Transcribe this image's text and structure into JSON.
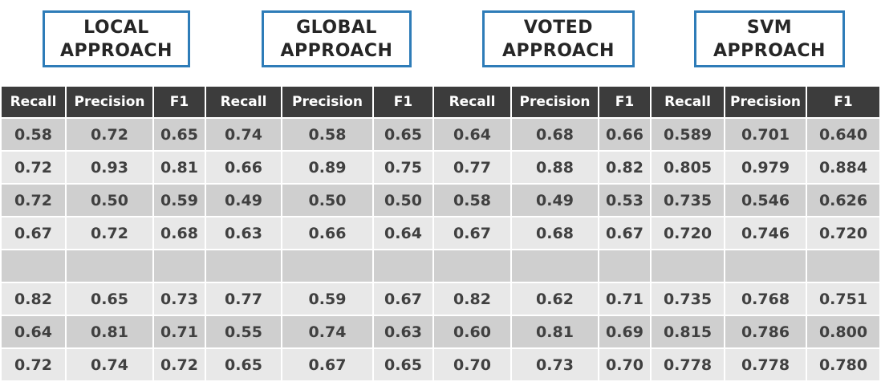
{
  "approaches": [
    {
      "line1": "LOCAL",
      "line2": "APPROACH"
    },
    {
      "line1": "GLOBAL",
      "line2": "APPROACH"
    },
    {
      "line1": "VOTED",
      "line2": "APPROACH"
    },
    {
      "line1": "SVM",
      "line2": "APPROACH"
    }
  ],
  "table": {
    "headers": [
      "Recall",
      "Precision",
      "F1",
      "Recall",
      "Precision",
      "F1",
      "Recall",
      "Precision",
      "F1",
      "Recall",
      "Precision",
      "F1"
    ],
    "rows": [
      [
        "0.58",
        "0.72",
        "0.65",
        "0.74",
        "0.58",
        "0.65",
        "0.64",
        "0.68",
        "0.66",
        "0.589",
        "0.701",
        "0.640"
      ],
      [
        "0.72",
        "0.93",
        "0.81",
        "0.66",
        "0.89",
        "0.75",
        "0.77",
        "0.88",
        "0.82",
        "0.805",
        "0.979",
        "0.884"
      ],
      [
        "0.72",
        "0.50",
        "0.59",
        "0.49",
        "0.50",
        "0.50",
        "0.58",
        "0.49",
        "0.53",
        "0.735",
        "0.546",
        "0.626"
      ],
      [
        "0.67",
        "0.72",
        "0.68",
        "0.63",
        "0.66",
        "0.64",
        "0.67",
        "0.68",
        "0.67",
        "0.720",
        "0.746",
        "0.720"
      ],
      [
        "",
        "",
        "",
        "",
        "",
        "",
        "",
        "",
        "",
        "",
        "",
        ""
      ],
      [
        "0.82",
        "0.65",
        "0.73",
        "0.77",
        "0.59",
        "0.67",
        "0.82",
        "0.62",
        "0.71",
        "0.735",
        "0.768",
        "0.751"
      ],
      [
        "0.64",
        "0.81",
        "0.71",
        "0.55",
        "0.74",
        "0.63",
        "0.60",
        "0.81",
        "0.69",
        "0.815",
        "0.786",
        "0.800"
      ],
      [
        "0.72",
        "0.74",
        "0.72",
        "0.65",
        "0.67",
        "0.65",
        "0.70",
        "0.73",
        "0.70",
        "0.778",
        "0.778",
        "0.780"
      ]
    ]
  },
  "colors": {
    "title_border": "#2e7cb8",
    "header_bg": "#3c3c3c",
    "row_dark": "#cfcfcf",
    "row_light": "#e8e8e8"
  }
}
